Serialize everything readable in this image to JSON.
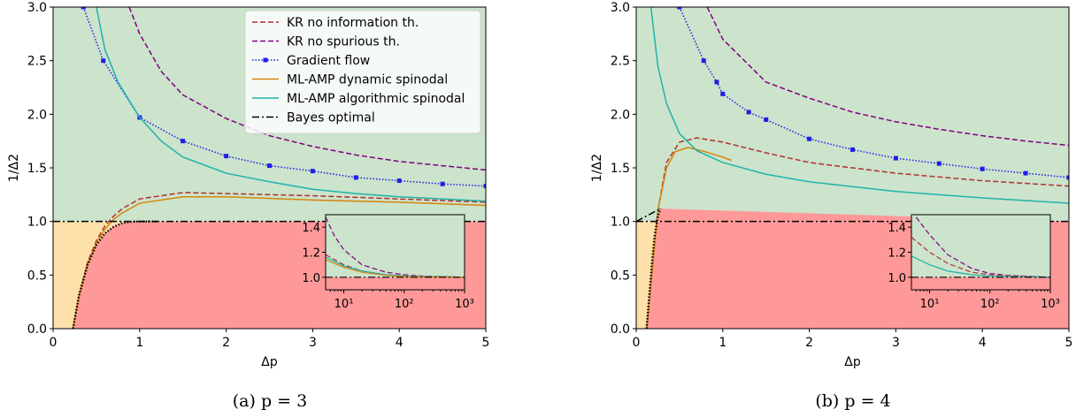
{
  "chart_data": [
    {
      "type": "line",
      "caption": "(a) p = 3",
      "xlabel": "Δp",
      "ylabel": "1/Δ2",
      "xlim": [
        0,
        5
      ],
      "ylim": [
        0,
        3
      ],
      "xticks": [
        "0",
        "1",
        "2",
        "3",
        "4",
        "5"
      ],
      "yticks": [
        "0.0",
        "0.5",
        "1.0",
        "1.5",
        "2.0",
        "2.5",
        "3.0"
      ],
      "legend_position": "top-right",
      "regions": [
        {
          "name": "green",
          "color": "#cce3cc"
        },
        {
          "name": "red",
          "color": "#ff9999"
        },
        {
          "name": "orange",
          "color": "#fde0aa"
        }
      ],
      "series": [
        {
          "name": "KR no information th.",
          "color": "#b03030",
          "style": "dashed",
          "x": [
            0.23,
            0.3,
            0.4,
            0.5,
            0.6,
            0.7,
            0.8,
            1.0,
            1.5,
            2.0,
            3.0,
            4.0,
            5.0
          ],
          "y": [
            0.0,
            0.32,
            0.62,
            0.82,
            0.96,
            1.05,
            1.12,
            1.21,
            1.27,
            1.26,
            1.24,
            1.21,
            1.18
          ]
        },
        {
          "name": "KR no spurious th.",
          "color": "#800080",
          "style": "dashed",
          "x": [
            0.88,
            1.0,
            1.25,
            1.5,
            2.0,
            2.5,
            3.0,
            3.5,
            4.0,
            4.5,
            5.0
          ],
          "y": [
            3.0,
            2.75,
            2.4,
            2.18,
            1.96,
            1.8,
            1.7,
            1.62,
            1.56,
            1.52,
            1.48
          ]
        },
        {
          "name": "Gradient flow",
          "color": "#1f1fe6",
          "style": "dotted-markers",
          "x": [
            0.35,
            0.58,
            1.0,
            1.5,
            2.0,
            2.5,
            3.0,
            3.5,
            4.0,
            4.5,
            5.0
          ],
          "y": [
            3.0,
            2.5,
            1.97,
            1.75,
            1.61,
            1.52,
            1.47,
            1.41,
            1.38,
            1.35,
            1.33
          ]
        },
        {
          "name": "ML-AMP dynamic spinodal",
          "color": "#d4860b",
          "style": "solid",
          "x": [
            0.23,
            0.3,
            0.4,
            0.5,
            0.6,
            0.7,
            0.8,
            1.0,
            1.5,
            2.0,
            3.0,
            4.0,
            5.0
          ],
          "y": [
            0.0,
            0.31,
            0.6,
            0.8,
            0.93,
            1.02,
            1.08,
            1.17,
            1.23,
            1.23,
            1.2,
            1.18,
            1.15
          ]
        },
        {
          "name": "ML-AMP algorithmic spinodal",
          "color": "#20b2aa",
          "style": "solid",
          "x": [
            0.5,
            0.6,
            0.75,
            1.0,
            1.25,
            1.5,
            2.0,
            2.5,
            3.0,
            3.5,
            4.0,
            5.0
          ],
          "y": [
            3.0,
            2.6,
            2.3,
            1.97,
            1.75,
            1.6,
            1.45,
            1.37,
            1.3,
            1.26,
            1.23,
            1.19
          ]
        },
        {
          "name": "Bayes optimal",
          "color": "#000000",
          "style": "dashdot",
          "x": [
            0.0,
            5.0
          ],
          "y": [
            1.0,
            1.0
          ]
        },
        {
          "name": "",
          "color": "#000000",
          "style": "dotted",
          "x": [
            0.23,
            0.3,
            0.4,
            0.5,
            0.6,
            0.7,
            0.8,
            0.9,
            1.0,
            1.2
          ],
          "y": [
            0.0,
            0.31,
            0.6,
            0.78,
            0.89,
            0.95,
            0.985,
            0.997,
            1.0,
            1.0
          ]
        }
      ],
      "inset": {
        "xscale": "log",
        "xlim": [
          5,
          1000
        ],
        "ylim": [
          0.9,
          1.5
        ],
        "xticks": [
          "10¹",
          "10²",
          "10³"
        ],
        "yticks": [
          "1.0",
          "1.2",
          "1.4"
        ],
        "series": [
          {
            "color": "#800080",
            "style": "dashed",
            "x": [
              5,
              7,
              10,
              20,
              50,
              100,
              200,
              1000
            ],
            "y": [
              1.48,
              1.33,
              1.22,
              1.1,
              1.04,
              1.02,
              1.01,
              1.0
            ]
          },
          {
            "color": "#b03030",
            "style": "dashed",
            "x": [
              5,
              10,
              20,
              50,
              100,
              1000
            ],
            "y": [
              1.18,
              1.1,
              1.05,
              1.02,
              1.01,
              1.0
            ]
          },
          {
            "color": "#20b2aa",
            "style": "solid",
            "x": [
              5,
              10,
              20,
              50,
              100,
              1000
            ],
            "y": [
              1.16,
              1.09,
              1.05,
              1.02,
              1.01,
              1.0
            ]
          },
          {
            "color": "#d4860b",
            "style": "solid",
            "x": [
              5,
              10,
              20,
              50,
              100,
              1000
            ],
            "y": [
              1.14,
              1.08,
              1.04,
              1.015,
              1.005,
              1.0
            ]
          },
          {
            "color": "#000000",
            "style": "dashdot",
            "x": [
              5,
              1000
            ],
            "y": [
              1.0,
              1.0
            ]
          }
        ]
      }
    },
    {
      "type": "line",
      "caption": "(b) p = 4",
      "xlabel": "Δp",
      "ylabel": "1/Δ2",
      "xlim": [
        0,
        5
      ],
      "ylim": [
        0,
        3
      ],
      "xticks": [
        "0",
        "1",
        "2",
        "3",
        "4",
        "5"
      ],
      "yticks": [
        "0.0",
        "0.5",
        "1.0",
        "1.5",
        "2.0",
        "2.5",
        "3.0"
      ],
      "series": [
        {
          "name": "KR no information th.",
          "color": "#b03030",
          "style": "dashed",
          "x": [
            0.12,
            0.18,
            0.25,
            0.35,
            0.5,
            0.7,
            1.0,
            1.5,
            2.0,
            3.0,
            4.0,
            5.0
          ],
          "y": [
            0.0,
            0.5,
            1.1,
            1.55,
            1.74,
            1.78,
            1.74,
            1.64,
            1.55,
            1.45,
            1.38,
            1.33
          ]
        },
        {
          "name": "KR no spurious th.",
          "color": "#800080",
          "style": "dashed",
          "x": [
            0.82,
            1.0,
            1.5,
            2.0,
            2.5,
            3.0,
            3.5,
            4.0,
            4.5,
            5.0
          ],
          "y": [
            3.0,
            2.7,
            2.3,
            2.15,
            2.02,
            1.93,
            1.86,
            1.8,
            1.75,
            1.71
          ]
        },
        {
          "name": "Gradient flow",
          "color": "#1f1fe6",
          "style": "dotted-markers",
          "x": [
            0.5,
            0.78,
            0.93,
            1.0,
            1.3,
            1.5,
            2.0,
            2.5,
            3.0,
            3.5,
            4.0,
            4.5,
            5.0
          ],
          "y": [
            3.0,
            2.5,
            2.3,
            2.19,
            2.02,
            1.95,
            1.77,
            1.67,
            1.59,
            1.54,
            1.49,
            1.45,
            1.41
          ]
        },
        {
          "name": "ML-AMP dynamic spinodal",
          "color": "#d4860b",
          "style": "solid",
          "x": [
            0.12,
            0.18,
            0.25,
            0.35,
            0.45,
            0.6,
            0.8,
            1.0,
            1.1
          ],
          "y": [
            0.0,
            0.5,
            1.1,
            1.5,
            1.65,
            1.69,
            1.65,
            1.6,
            1.57
          ]
        },
        {
          "name": "ML-AMP algorithmic spinodal",
          "color": "#20b2aa",
          "style": "solid",
          "x": [
            0.17,
            0.25,
            0.35,
            0.5,
            0.7,
            1.0,
            1.5,
            2.0,
            3.0,
            4.0,
            5.0
          ],
          "y": [
            3.0,
            2.45,
            2.1,
            1.82,
            1.66,
            1.55,
            1.44,
            1.37,
            1.28,
            1.22,
            1.17
          ]
        },
        {
          "name": "Bayes optimal",
          "color": "#000000",
          "style": "dashdot",
          "x": [
            0.0,
            5.0
          ],
          "y": [
            1.0,
            1.0
          ]
        },
        {
          "name": "",
          "color": "#000000",
          "style": "dashdot",
          "x": [
            0.0,
            0.28
          ],
          "y": [
            1.0,
            1.12
          ]
        },
        {
          "name": "",
          "color": "#000000",
          "style": "dotted",
          "x": [
            0.12,
            0.15,
            0.18,
            0.21,
            0.25,
            0.28
          ],
          "y": [
            0.0,
            0.3,
            0.6,
            0.85,
            1.05,
            1.12
          ]
        }
      ],
      "inset": {
        "xscale": "log",
        "xlim": [
          5,
          1000
        ],
        "ylim": [
          0.9,
          1.5
        ],
        "xticks": [
          "10¹",
          "10²",
          "10³"
        ],
        "yticks": [
          "1.0",
          "1.2",
          "1.4"
        ],
        "series": [
          {
            "color": "#800080",
            "style": "dashed",
            "x": [
              6,
              8,
              10,
              20,
              50,
              100,
              200,
              1000
            ],
            "y": [
              1.48,
              1.4,
              1.34,
              1.18,
              1.07,
              1.03,
              1.015,
              1.0
            ]
          },
          {
            "color": "#b03030",
            "style": "dashed",
            "x": [
              5,
              10,
              20,
              50,
              100,
              1000
            ],
            "y": [
              1.32,
              1.2,
              1.11,
              1.04,
              1.02,
              1.0
            ]
          },
          {
            "color": "#20b2aa",
            "style": "solid",
            "x": [
              5,
              10,
              20,
              50,
              100,
              1000
            ],
            "y": [
              1.17,
              1.1,
              1.05,
              1.02,
              1.01,
              1.0
            ]
          },
          {
            "color": "#000000",
            "style": "dashdot",
            "x": [
              5,
              1000
            ],
            "y": [
              1.0,
              1.0
            ]
          }
        ]
      }
    }
  ]
}
